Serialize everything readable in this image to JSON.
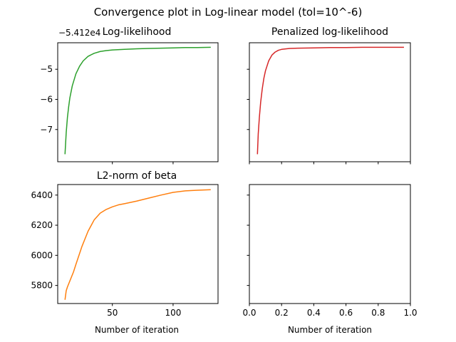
{
  "figure": {
    "title": "Convergence plot in Log-linear model (tol=10^-6)"
  },
  "chart_data": [
    {
      "type": "line",
      "title": "Log-likelihood",
      "offset_text": "−5.412e4",
      "xlabel": "",
      "ylabel": "",
      "xlim": [
        5,
        137
      ],
      "ylim": [
        -8.07,
        -4.12
      ],
      "yticks": [
        -7,
        -6,
        -5
      ],
      "ytick_labels": [
        "−7",
        "−6",
        "−5"
      ],
      "grid": false,
      "color": "#2ca02c",
      "x": [
        11,
        12,
        13,
        14,
        15,
        17,
        20,
        23,
        26,
        30,
        35,
        40,
        45,
        50,
        60,
        70,
        80,
        90,
        100,
        110,
        120,
        131
      ],
      "y": [
        -7.82,
        -7.1,
        -6.6,
        -6.25,
        -5.95,
        -5.55,
        -5.15,
        -4.9,
        -4.72,
        -4.57,
        -4.47,
        -4.41,
        -4.38,
        -4.36,
        -4.34,
        -4.32,
        -4.31,
        -4.3,
        -4.29,
        -4.28,
        -4.28,
        -4.27
      ]
    },
    {
      "type": "line",
      "title": "Penalized log-likelihood",
      "xlabel": "",
      "ylabel": "",
      "xlim": [
        0,
        1
      ],
      "ylim": [
        -8.07,
        -4.12
      ],
      "grid": false,
      "color": "#d62728",
      "x": [
        0.05,
        0.055,
        0.062,
        0.07,
        0.08,
        0.09,
        0.1,
        0.12,
        0.14,
        0.16,
        0.18,
        0.2,
        0.25,
        0.3,
        0.4,
        0.5,
        0.6,
        0.7,
        0.8,
        0.96
      ],
      "y": [
        -7.82,
        -7.15,
        -6.6,
        -6.1,
        -5.65,
        -5.3,
        -5.05,
        -4.72,
        -4.53,
        -4.43,
        -4.37,
        -4.34,
        -4.31,
        -4.3,
        -4.29,
        -4.28,
        -4.28,
        -4.27,
        -4.27,
        -4.27
      ]
    },
    {
      "type": "line",
      "title": "L2-norm of beta",
      "xlabel": "Number of iteration",
      "ylabel": "",
      "xlim": [
        5,
        137
      ],
      "ylim": [
        5680,
        6470
      ],
      "xticks": [
        50,
        100
      ],
      "yticks": [
        5800,
        6000,
        6200,
        6400
      ],
      "grid": false,
      "color": "#ff7f0e",
      "x": [
        11,
        12,
        13,
        15,
        18,
        20,
        25,
        30,
        35,
        40,
        45,
        50,
        55,
        60,
        70,
        80,
        90,
        100,
        110,
        120,
        131
      ],
      "y": [
        5705,
        5765,
        5790,
        5830,
        5890,
        5940,
        6060,
        6160,
        6235,
        6280,
        6305,
        6322,
        6335,
        6343,
        6360,
        6380,
        6400,
        6418,
        6428,
        6432,
        6436
      ]
    },
    {
      "type": "line",
      "title": "",
      "xlabel": "Number of iteration",
      "ylabel": "",
      "xlim": [
        0,
        1
      ],
      "ylim": [
        5680,
        6470
      ],
      "xticks": [
        0.0,
        0.2,
        0.4,
        0.6,
        0.8,
        1.0
      ],
      "xtick_labels": [
        "0.0",
        "0.2",
        "0.4",
        "0.6",
        "0.8",
        "1.0"
      ],
      "grid": false,
      "x": [],
      "y": []
    }
  ]
}
